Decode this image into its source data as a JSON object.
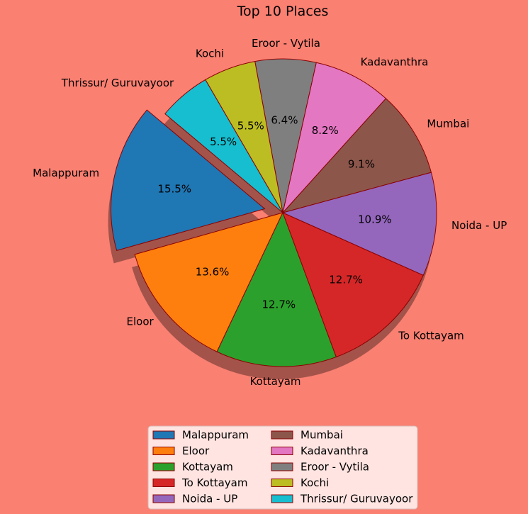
{
  "chart_data": {
    "type": "pie",
    "title": "Top 10 Places",
    "slices": [
      {
        "label": "Malappuram",
        "value": 15.5,
        "pct_label": "15.5%",
        "color": "#1f77b4",
        "exploded": true
      },
      {
        "label": "Eloor",
        "value": 13.6,
        "pct_label": "13.6%",
        "color": "#ff7f0e"
      },
      {
        "label": "Kottayam",
        "value": 12.7,
        "pct_label": "12.7%",
        "color": "#2ca02c"
      },
      {
        "label": "To Kottayam",
        "value": 12.7,
        "pct_label": "12.7%",
        "color": "#d62728"
      },
      {
        "label": "Noida - UP",
        "value": 10.9,
        "pct_label": "10.9%",
        "color": "#9467bd"
      },
      {
        "label": "Mumbai",
        "value": 9.1,
        "pct_label": "9.1%",
        "color": "#8c564b"
      },
      {
        "label": "Kadavanthra",
        "value": 8.2,
        "pct_label": "8.2%",
        "color": "#e377c2"
      },
      {
        "label": "Eroor - Vytila",
        "value": 6.4,
        "pct_label": "6.4%",
        "color": "#7f7f7f"
      },
      {
        "label": "Kochi",
        "value": 5.5,
        "pct_label": "5.5%",
        "color": "#bcbd22"
      },
      {
        "label": "Thrissur/ Guruvayoor",
        "value": 5.5,
        "pct_label": "5.5%",
        "color": "#17becf"
      }
    ],
    "shadow": true,
    "edge_color": "#8b0000",
    "background_color": "#fa8072",
    "legend": {
      "placement": "bottom-center",
      "columns": 2,
      "background": "#ffe4e1"
    }
  }
}
